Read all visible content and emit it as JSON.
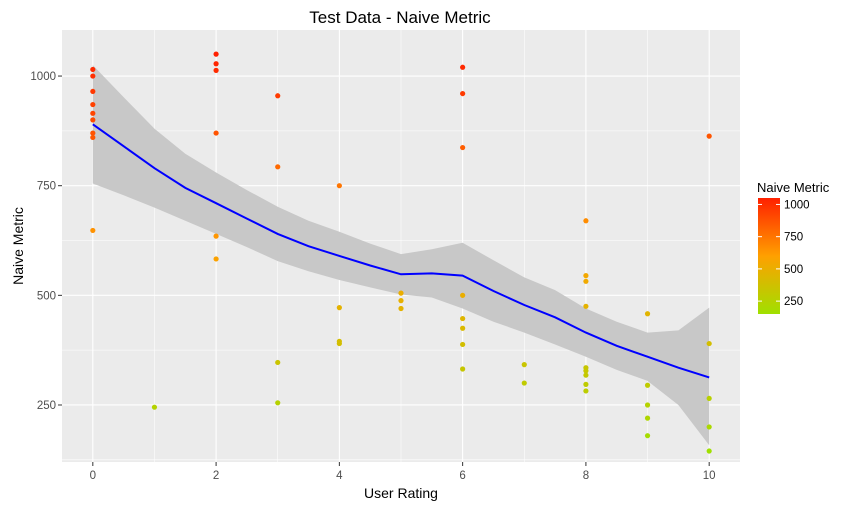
{
  "chart_data": {
    "type": "scatter",
    "title": "Test Data - Naive Metric",
    "xlabel": "User Rating",
    "ylabel": "Naive Metric",
    "xlim": [
      -0.5,
      10.5
    ],
    "ylim": [
      120,
      1105
    ],
    "x_ticks": [
      0,
      2,
      4,
      6,
      8,
      10
    ],
    "y_ticks": [
      250,
      500,
      750,
      1000
    ],
    "grid": true,
    "background": "#ebebeb",
    "legend": {
      "title": "Naive Metric",
      "labels": [
        "1000",
        "750",
        "500",
        "250"
      ],
      "values": [
        1000,
        750,
        500,
        250
      ],
      "color_range": [
        150,
        1050
      ],
      "placement": "right"
    },
    "colors": {
      "low": "#a0e000",
      "mid": "#ffa000",
      "high": "#ff2000",
      "smooth_line": "#0000ff",
      "ribbon": "#c8c8c8"
    },
    "points": [
      {
        "x": 0,
        "y": 1015
      },
      {
        "x": 0,
        "y": 1000
      },
      {
        "x": 0,
        "y": 965
      },
      {
        "x": 0,
        "y": 935
      },
      {
        "x": 0,
        "y": 915
      },
      {
        "x": 0,
        "y": 900
      },
      {
        "x": 0,
        "y": 870
      },
      {
        "x": 0,
        "y": 860
      },
      {
        "x": 0,
        "y": 648
      },
      {
        "x": 1,
        "y": 245
      },
      {
        "x": 2,
        "y": 1050
      },
      {
        "x": 2,
        "y": 1028
      },
      {
        "x": 2,
        "y": 1013
      },
      {
        "x": 2,
        "y": 870
      },
      {
        "x": 2,
        "y": 635
      },
      {
        "x": 2,
        "y": 583
      },
      {
        "x": 3,
        "y": 955
      },
      {
        "x": 3,
        "y": 793
      },
      {
        "x": 3,
        "y": 347
      },
      {
        "x": 3,
        "y": 255
      },
      {
        "x": 4,
        "y": 750
      },
      {
        "x": 4,
        "y": 472
      },
      {
        "x": 4,
        "y": 395
      },
      {
        "x": 4,
        "y": 390
      },
      {
        "x": 5,
        "y": 505
      },
      {
        "x": 5,
        "y": 488
      },
      {
        "x": 5,
        "y": 470
      },
      {
        "x": 6,
        "y": 1020
      },
      {
        "x": 6,
        "y": 960
      },
      {
        "x": 6,
        "y": 837
      },
      {
        "x": 6,
        "y": 500
      },
      {
        "x": 6,
        "y": 447
      },
      {
        "x": 6,
        "y": 425
      },
      {
        "x": 6,
        "y": 388
      },
      {
        "x": 6,
        "y": 332
      },
      {
        "x": 7,
        "y": 342
      },
      {
        "x": 7,
        "y": 300
      },
      {
        "x": 8,
        "y": 670
      },
      {
        "x": 8,
        "y": 545
      },
      {
        "x": 8,
        "y": 532
      },
      {
        "x": 8,
        "y": 475
      },
      {
        "x": 8,
        "y": 335
      },
      {
        "x": 8,
        "y": 328
      },
      {
        "x": 8,
        "y": 318
      },
      {
        "x": 8,
        "y": 297
      },
      {
        "x": 8,
        "y": 282
      },
      {
        "x": 9,
        "y": 458
      },
      {
        "x": 9,
        "y": 295
      },
      {
        "x": 9,
        "y": 250
      },
      {
        "x": 9,
        "y": 220
      },
      {
        "x": 9,
        "y": 180
      },
      {
        "x": 10,
        "y": 863
      },
      {
        "x": 10,
        "y": 390
      },
      {
        "x": 10,
        "y": 265
      },
      {
        "x": 10,
        "y": 200
      },
      {
        "x": 10,
        "y": 145
      }
    ],
    "smooth": {
      "x": [
        0,
        0.5,
        1,
        1.5,
        2,
        2.5,
        3,
        3.5,
        4,
        4.5,
        5,
        5.5,
        6,
        6.5,
        7,
        7.5,
        8,
        8.5,
        9,
        9.5,
        10
      ],
      "y": [
        890,
        840,
        790,
        745,
        710,
        675,
        640,
        612,
        590,
        568,
        548,
        550,
        545,
        510,
        478,
        450,
        415,
        385,
        360,
        335,
        313
      ],
      "lower": [
        755,
        728,
        700,
        670,
        640,
        610,
        578,
        555,
        535,
        518,
        502,
        495,
        470,
        440,
        415,
        388,
        360,
        330,
        305,
        250,
        158
      ],
      "upper": [
        1025,
        952,
        880,
        823,
        780,
        740,
        702,
        670,
        645,
        618,
        594,
        605,
        620,
        580,
        541,
        512,
        470,
        440,
        415,
        420,
        472
      ]
    }
  }
}
